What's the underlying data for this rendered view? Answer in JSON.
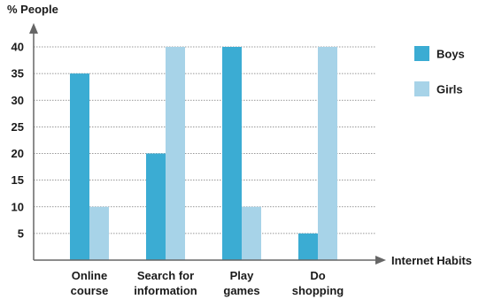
{
  "chart_data": {
    "type": "bar",
    "title": "",
    "ylabel": "% People",
    "xlabel": "Internet Habits",
    "ylim": [
      0,
      40
    ],
    "yticks": [
      5,
      10,
      15,
      20,
      25,
      30,
      35,
      40
    ],
    "grid": "horizontal dotted",
    "legend_position": "right",
    "categories": [
      [
        "Online",
        "course"
      ],
      [
        "Search for",
        "information"
      ],
      [
        "Play",
        "games"
      ],
      [
        "Do",
        "shopping"
      ]
    ],
    "series": [
      {
        "name": "Boys",
        "color": "#3BACD3",
        "values": [
          35,
          20,
          40,
          5
        ]
      },
      {
        "name": "Girls",
        "color": "#A7D3E8",
        "values": [
          10,
          40,
          10,
          40
        ]
      }
    ]
  }
}
